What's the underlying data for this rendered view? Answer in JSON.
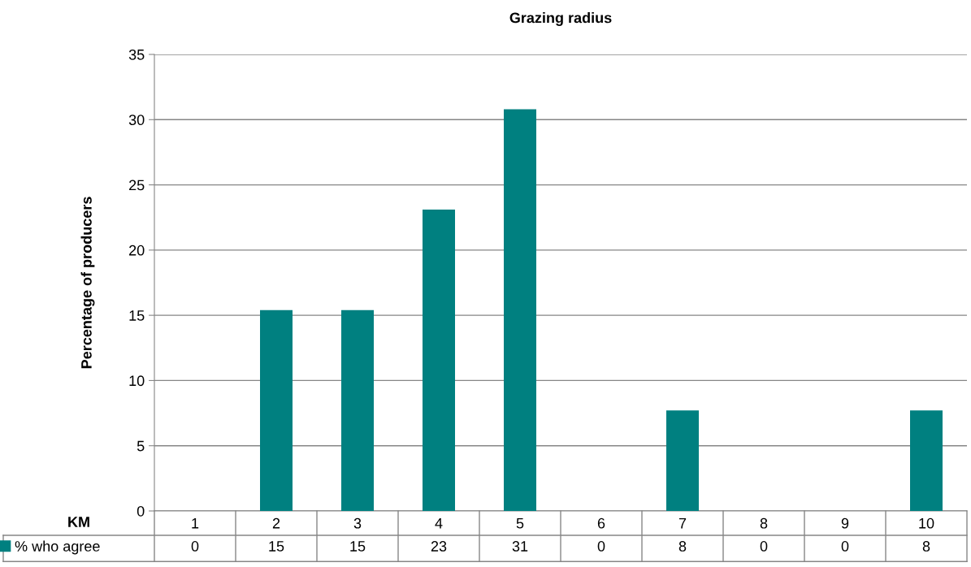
{
  "chart_data": {
    "type": "bar",
    "title": "Grazing radius",
    "xlabel": "KM",
    "ylabel": "Percentage of producers",
    "categories": [
      "1",
      "2",
      "3",
      "4",
      "5",
      "6",
      "7",
      "8",
      "9",
      "10"
    ],
    "series": [
      {
        "name": "% who agree",
        "color": "#008080",
        "values": [
          0,
          15.4,
          15.4,
          23.1,
          30.8,
          0,
          7.7,
          0,
          0,
          7.7
        ],
        "value_labels": [
          "0",
          "15",
          "15",
          "23",
          "31",
          "0",
          "8",
          "0",
          "0",
          "8"
        ]
      }
    ],
    "ylim": [
      0,
      35
    ],
    "yticks": [
      0,
      5,
      10,
      15,
      20,
      25,
      30,
      35
    ],
    "grid": "y",
    "legend": "bottom left"
  }
}
